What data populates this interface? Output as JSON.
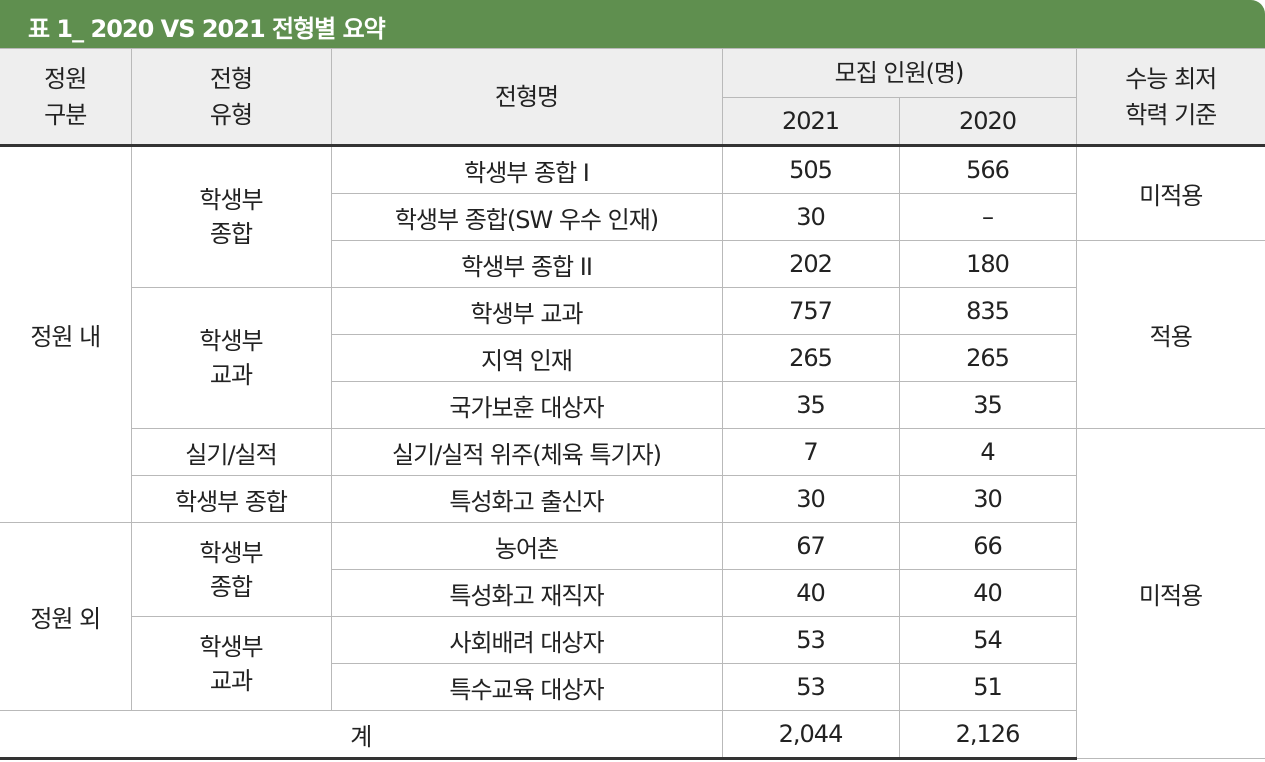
{
  "title": "표 1_ 2020 VS 2021 전형별 요약",
  "headers": {
    "quota_line1": "정원",
    "quota_line2": "구분",
    "type_line1": "전형",
    "type_line2": "유형",
    "name": "전형명",
    "recruit": "모집 인원(명)",
    "y2021": "2021",
    "y2020": "2020",
    "csat_line1": "수능 최저",
    "csat_line2": "학력 기준"
  },
  "groups": {
    "inside": "정원 내",
    "outside": "정원 외"
  },
  "types": {
    "comp_line1": "학생부",
    "comp_line2": "종합",
    "subj_line1": "학생부",
    "subj_line2": "교과",
    "practical": "실기/실적",
    "comp_single": "학생부 종합",
    "comp2_line1": "학생부",
    "comp2_line2": "종합",
    "subj2_line1": "학생부",
    "subj2_line2": "교과"
  },
  "rows": [
    {
      "name": "학생부 종합 I",
      "y2021": "505",
      "y2020": "566"
    },
    {
      "name": "학생부 종합(SW 우수 인재)",
      "y2021": "30",
      "y2020": "–"
    },
    {
      "name": "학생부 종합 II",
      "y2021": "202",
      "y2020": "180"
    },
    {
      "name": "학생부 교과",
      "y2021": "757",
      "y2020": "835"
    },
    {
      "name": "지역 인재",
      "y2021": "265",
      "y2020": "265"
    },
    {
      "name": "국가보훈 대상자",
      "y2021": "35",
      "y2020": "35"
    },
    {
      "name": "실기/실적 위주(체육 특기자)",
      "y2021": "7",
      "y2020": "4"
    },
    {
      "name": "특성화고 출신자",
      "y2021": "30",
      "y2020": "30"
    },
    {
      "name": "농어촌",
      "y2021": "67",
      "y2020": "66"
    },
    {
      "name": "특성화고 재직자",
      "y2021": "40",
      "y2020": "40"
    },
    {
      "name": "사회배려 대상자",
      "y2021": "53",
      "y2020": "54"
    },
    {
      "name": "특수교육 대상자",
      "y2021": "53",
      "y2020": "51"
    }
  ],
  "csat": {
    "not_applied_1": "미적용",
    "applied": "적용",
    "not_applied_2": "미적용"
  },
  "total": {
    "label": "계",
    "y2021": "2,044",
    "y2020": "2,126"
  }
}
